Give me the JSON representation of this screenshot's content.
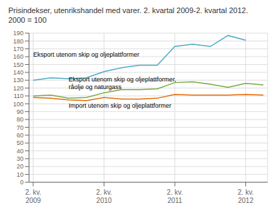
{
  "chart_data": {
    "type": "line",
    "title": "Prisindekser, utenrikshandel med varer. 2. kvartal 2009-2. kvartal 2012.",
    "subtitle": "2000 = 100",
    "categories": [
      "2. kv.\n2009",
      null,
      null,
      null,
      "2. kv.\n2010",
      null,
      null,
      null,
      "2. kv.\n2011",
      null,
      null,
      null,
      "2. kv.\n2012",
      null
    ],
    "series": [
      {
        "color": "#4bacc6",
        "values": [
          130,
          133,
          132,
          133,
          141,
          146,
          149,
          149,
          173,
          176,
          173,
          187,
          181,
          null
        ]
      },
      {
        "color": "#77ab3f",
        "values": [
          110,
          111,
          107,
          108,
          114,
          118,
          118,
          119,
          127,
          128,
          125,
          121,
          126,
          124
        ]
      },
      {
        "color": "#e36c0a",
        "values": [
          108,
          107,
          105,
          104,
          108,
          106,
          106,
          107,
          112,
          111,
          111,
          111,
          112,
          111
        ]
      }
    ],
    "annotations": [
      "Eksport utenom skip og oljeplattformer",
      "Eksport utenom skip og oljeplattformer,\nråolje og naturgass",
      "Import utenom skip og oljeplattformer"
    ],
    "ylim": [
      0,
      190
    ],
    "yticks": [
      0,
      10,
      20,
      30,
      40,
      50,
      60,
      70,
      80,
      90,
      100,
      110,
      120,
      130,
      140,
      150,
      160,
      170,
      180,
      190
    ],
    "grid": true
  }
}
